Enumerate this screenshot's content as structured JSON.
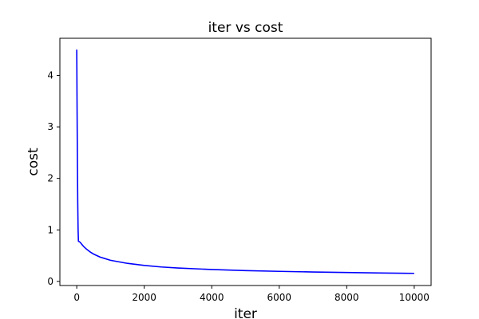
{
  "chart_data": {
    "type": "line",
    "title": "iter vs cost",
    "xlabel": "iter",
    "ylabel": "cost",
    "xlim": [
      -500,
      10500
    ],
    "ylim": [
      -0.08,
      4.72
    ],
    "xticks": [
      0,
      2000,
      4000,
      6000,
      8000,
      10000
    ],
    "yticks": [
      0,
      1,
      2,
      3,
      4
    ],
    "grid": false,
    "series": [
      {
        "color": "#0000ff",
        "x": [
          0,
          10,
          20,
          30,
          40,
          50,
          75,
          100,
          150,
          200,
          300,
          400,
          500,
          700,
          1000,
          1500,
          2000,
          2500,
          3000,
          4000,
          5000,
          6000,
          7000,
          8000,
          9000,
          10000
        ],
        "y": [
          4.5,
          3.3,
          2.3,
          1.5,
          1.0,
          0.78,
          0.77,
          0.76,
          0.72,
          0.68,
          0.62,
          0.57,
          0.53,
          0.47,
          0.41,
          0.35,
          0.31,
          0.28,
          0.26,
          0.23,
          0.21,
          0.195,
          0.182,
          0.172,
          0.163,
          0.156
        ]
      }
    ]
  }
}
